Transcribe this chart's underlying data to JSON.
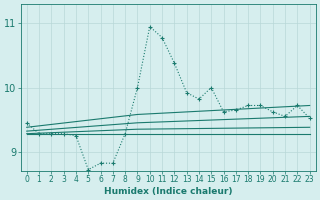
{
  "xlabel": "Humidex (Indice chaleur)",
  "xlim": [
    -0.5,
    23.5
  ],
  "ylim": [
    8.7,
    11.3
  ],
  "yticks": [
    9,
    10,
    11
  ],
  "xticks": [
    0,
    1,
    2,
    3,
    4,
    5,
    6,
    7,
    8,
    9,
    10,
    11,
    12,
    13,
    14,
    15,
    16,
    17,
    18,
    19,
    20,
    21,
    22,
    23
  ],
  "bg_color": "#d6eeee",
  "grid_color": "#b8d8d8",
  "line_color": "#1a7a6e",
  "main_x": [
    0,
    1,
    2,
    3,
    4,
    5,
    6,
    7,
    8,
    9,
    10,
    11,
    12,
    13,
    14,
    15,
    16,
    17,
    18,
    19,
    20,
    21,
    22,
    23
  ],
  "main_y": [
    9.45,
    9.28,
    9.28,
    9.28,
    9.25,
    8.72,
    8.82,
    8.82,
    9.28,
    10.0,
    10.95,
    10.78,
    10.38,
    9.92,
    9.82,
    10.0,
    9.62,
    9.65,
    9.72,
    9.72,
    9.62,
    9.55,
    9.72,
    9.52
  ],
  "line2_x": [
    0,
    9,
    23
  ],
  "line2_y": [
    9.28,
    9.28,
    9.28
  ],
  "line3_x": [
    0,
    9,
    23
  ],
  "line3_y": [
    9.28,
    9.35,
    9.38
  ],
  "line4_x": [
    0,
    9,
    23
  ],
  "line4_y": [
    9.32,
    9.45,
    9.55
  ],
  "line5_x": [
    0,
    9,
    23
  ],
  "line5_y": [
    9.38,
    9.58,
    9.72
  ]
}
